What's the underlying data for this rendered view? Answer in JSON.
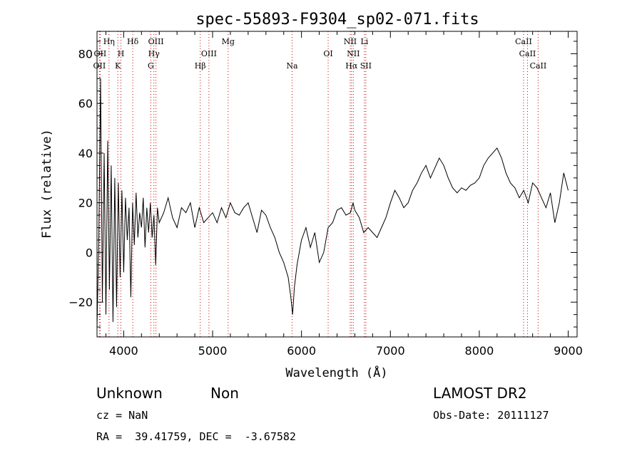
{
  "chart_data": {
    "type": "line",
    "title": "spec-55893-F9304_sp02-071.fits",
    "xlabel": "Wavelength (Å)",
    "ylabel": "Flux (relative)",
    "xlim": [
      3700,
      9100
    ],
    "ylim": [
      -34,
      89
    ],
    "xticks": [
      4000,
      5000,
      6000,
      7000,
      8000,
      9000
    ],
    "xtick_labels": [
      "4000",
      "5000",
      "6000",
      "7000",
      "8000",
      "9000"
    ],
    "yticks": [
      -20,
      0,
      20,
      40,
      60,
      80
    ],
    "ytick_labels": [
      "−20",
      "0",
      "20",
      "40",
      "60",
      "80"
    ],
    "grid": false,
    "line_color": "#000000",
    "marker_color": "#cc0000",
    "spectral_lines": [
      {
        "label": "OII",
        "wavelength": 3727,
        "row": 3
      },
      {
        "label": "OII",
        "wavelength": 3735,
        "row": 2
      },
      {
        "label": "Hη",
        "wavelength": 3835,
        "row": 1
      },
      {
        "label": "K",
        "wavelength": 3934,
        "row": 3
      },
      {
        "label": "H",
        "wavelength": 3969,
        "row": 2
      },
      {
        "label": "Hδ",
        "wavelength": 4102,
        "row": 1
      },
      {
        "label": "G",
        "wavelength": 4305,
        "row": 3
      },
      {
        "label": "Hγ",
        "wavelength": 4340,
        "row": 2
      },
      {
        "label": "OIII",
        "wavelength": 4363,
        "row": 1
      },
      {
        "label": "Hβ",
        "wavelength": 4861,
        "row": 3
      },
      {
        "label": "OIII",
        "wavelength": 4959,
        "row": 2
      },
      {
        "label": "Mg",
        "wavelength": 5175,
        "row": 1
      },
      {
        "label": "Na",
        "wavelength": 5894,
        "row": 3
      },
      {
        "label": "OI",
        "wavelength": 6300,
        "row": 2
      },
      {
        "label": "NII",
        "wavelength": 6548,
        "row": 1
      },
      {
        "label": "Hα",
        "wavelength": 6563,
        "row": 3
      },
      {
        "label": "NII",
        "wavelength": 6583,
        "row": 2
      },
      {
        "label": "Li",
        "wavelength": 6708,
        "row": 1
      },
      {
        "label": "SII",
        "wavelength": 6724,
        "row": 3
      },
      {
        "label": "CaII",
        "wavelength": 8498,
        "row": 1
      },
      {
        "label": "CaII",
        "wavelength": 8542,
        "row": 2
      },
      {
        "label": "CaII",
        "wavelength": 8662,
        "row": 3
      }
    ],
    "series": [
      {
        "x": [
          3700,
          3720,
          3740,
          3760,
          3780,
          3800,
          3820,
          3840,
          3860,
          3880,
          3900,
          3920,
          3940,
          3960,
          3980,
          4000,
          4020,
          4040,
          4060,
          4080,
          4100,
          4120,
          4140,
          4160,
          4180,
          4200,
          4220,
          4240,
          4260,
          4280,
          4300,
          4320,
          4340,
          4360,
          4380,
          4400,
          4450,
          4500,
          4550,
          4600,
          4650,
          4700,
          4750,
          4800,
          4850,
          4900,
          4950,
          5000,
          5050,
          5100,
          5150,
          5200,
          5250,
          5300,
          5350,
          5400,
          5450,
          5500,
          5550,
          5600,
          5650,
          5700,
          5750,
          5800,
          5850,
          5880,
          5900,
          5920,
          5950,
          6000,
          6050,
          6100,
          6150,
          6200,
          6250,
          6300,
          6350,
          6400,
          6450,
          6500,
          6550,
          6580,
          6600,
          6650,
          6700,
          6750,
          6800,
          6850,
          6900,
          6950,
          7000,
          7050,
          7100,
          7150,
          7200,
          7250,
          7300,
          7350,
          7400,
          7450,
          7500,
          7550,
          7600,
          7650,
          7700,
          7750,
          7800,
          7850,
          7900,
          7950,
          8000,
          8050,
          8100,
          8150,
          8200,
          8250,
          8300,
          8350,
          8400,
          8450,
          8500,
          8550,
          8600,
          8650,
          8700,
          8750,
          8800,
          8850,
          8900,
          8950,
          9000
        ],
        "y": [
          -30,
          5,
          70,
          -20,
          40,
          -25,
          45,
          -15,
          35,
          -28,
          30,
          -22,
          28,
          -10,
          25,
          -8,
          22,
          5,
          18,
          -18,
          20,
          3,
          24,
          6,
          16,
          10,
          22,
          2,
          18,
          8,
          20,
          6,
          15,
          -5,
          18,
          12,
          16,
          22,
          14,
          10,
          18,
          16,
          20,
          10,
          18,
          12,
          14,
          16,
          12,
          18,
          14,
          20,
          16,
          15,
          18,
          20,
          14,
          8,
          17,
          15,
          10,
          6,
          0,
          -4,
          -10,
          -18,
          -25,
          -14,
          -5,
          5,
          10,
          2,
          8,
          -4,
          0,
          10,
          12,
          17,
          18,
          15,
          16,
          20,
          17,
          14,
          8,
          10,
          8,
          6,
          10,
          14,
          20,
          25,
          22,
          18,
          20,
          25,
          28,
          32,
          35,
          30,
          34,
          38,
          35,
          30,
          26,
          24,
          26,
          25,
          27,
          28,
          30,
          35,
          38,
          40,
          42,
          38,
          32,
          28,
          26,
          22,
          25,
          20,
          28,
          26,
          22,
          18,
          24,
          12,
          20,
          32,
          25
        ]
      }
    ]
  },
  "info": {
    "class_text": "Unknown",
    "subclass_text": "Non",
    "survey_text": "LAMOST DR2",
    "cz_text": "cz = NaN",
    "obs_date_text": "Obs-Date: 20111127",
    "radec_text": "RA =  39.41759, DEC =  -3.67582"
  }
}
